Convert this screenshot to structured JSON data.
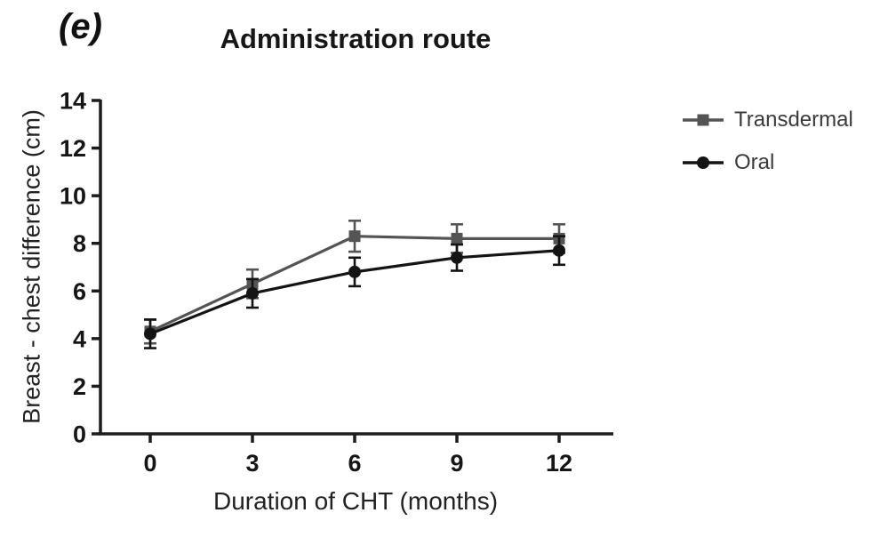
{
  "chart_data": {
    "type": "line",
    "panel_label": "(e)",
    "title": "Administration route",
    "xlabel": "Duration of CHT (months)",
    "ylabel": "Breast - chest difference (cm)",
    "x": [
      0,
      3,
      6,
      9,
      12
    ],
    "ylim": [
      0,
      14
    ],
    "yticks": [
      0,
      2,
      4,
      6,
      8,
      10,
      12,
      14
    ],
    "grid": false,
    "legend_position": "right",
    "axis_color": "#1c1c1c",
    "series": [
      {
        "name": "Transdermal",
        "marker": "square",
        "color": "#545454",
        "values": [
          4.3,
          6.3,
          8.3,
          8.2,
          8.2
        ],
        "errors": [
          0.5,
          0.6,
          0.65,
          0.6,
          0.6
        ]
      },
      {
        "name": "Oral",
        "marker": "circle",
        "color": "#141414",
        "values": [
          4.2,
          5.9,
          6.8,
          7.4,
          7.7
        ],
        "errors": [
          0.6,
          0.6,
          0.6,
          0.55,
          0.6
        ]
      }
    ]
  }
}
